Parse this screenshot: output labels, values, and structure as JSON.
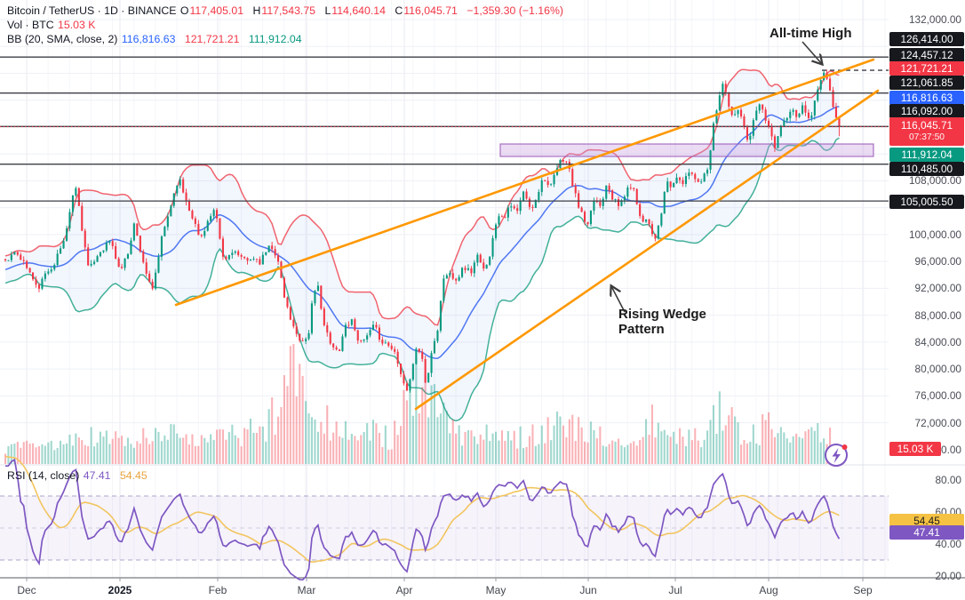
{
  "legend": {
    "symbol_title": "Bitcoin / TetherUS · 1D · BINANCE",
    "ohlc": {
      "o_label": "O",
      "o": "117,405.01",
      "h_label": "H",
      "h": "117,543.75",
      "l_label": "L",
      "l": "114,640.14",
      "c_label": "C",
      "c": "116,045.71",
      "change": "−1,359.30 (−1.16%)"
    },
    "volume": {
      "label": "Vol · BTC",
      "value": "15.03 K"
    },
    "bb": {
      "label": "BB (20, SMA, close, 2)",
      "basis": "116,816.63",
      "upper": "121,721.21",
      "lower": "111,912.04"
    },
    "rsi": {
      "label": "RSI (14, close)",
      "value": "47.41",
      "ma": "54.45"
    }
  },
  "annotations": {
    "ath": "All-time High",
    "wedge": "Rising Wedge Pattern"
  },
  "price_axis": {
    "gridline_labels": [
      {
        "text": "132,000.00",
        "price": 132000
      },
      {
        "text": "108,000.00",
        "price": 108000
      },
      {
        "text": "100,000.00",
        "price": 100000
      },
      {
        "text": "96,000.00",
        "price": 96000
      },
      {
        "text": "92,000.00",
        "price": 92000
      },
      {
        "text": "88,000.00",
        "price": 88000
      },
      {
        "text": "84,000.00",
        "price": 84000
      },
      {
        "text": "80,000.00",
        "price": 80000
      },
      {
        "text": "76,000.00",
        "price": 76000
      },
      {
        "text": "72,000.00",
        "price": 72000
      },
      {
        "text": "68,000.00",
        "price": 68000
      }
    ],
    "badges": [
      {
        "text": "126,414.00",
        "style": "black"
      },
      {
        "text": "124,457.12",
        "style": "black"
      },
      {
        "text": "121,721.21",
        "style": "red"
      },
      {
        "text": "121,061.85",
        "style": "black"
      },
      {
        "text": "116,816.63",
        "style": "blue"
      },
      {
        "text": "116,092.00",
        "style": "black"
      },
      {
        "text": "116,045.71",
        "style": "red",
        "countdown": "07:37:50"
      },
      {
        "text": "111,912.04",
        "style": "teal"
      },
      {
        "text": "110,485.00",
        "style": "black"
      },
      {
        "text": "105,005.50",
        "style": "black"
      }
    ],
    "volume_badge": "15.03 K"
  },
  "rsi_axis": {
    "gridline_labels": [
      {
        "text": "80.00",
        "v": 80
      },
      {
        "text": "60.00",
        "v": 60
      },
      {
        "text": "40.00",
        "v": 40
      },
      {
        "text": "20.00",
        "v": 20
      }
    ],
    "badges": [
      {
        "text": "54.45",
        "style": "yellow",
        "v": 54.45
      },
      {
        "text": "47.41",
        "style": "violet",
        "v": 47.41
      }
    ]
  },
  "time_axis": {
    "labels": [
      {
        "text": "Dec",
        "x": 30
      },
      {
        "text": "2025",
        "x": 135,
        "bold": true
      },
      {
        "text": "Feb",
        "x": 245
      },
      {
        "text": "Mar",
        "x": 345
      },
      {
        "text": "Apr",
        "x": 455
      },
      {
        "text": "May",
        "x": 558
      },
      {
        "text": "Jun",
        "x": 662
      },
      {
        "text": "Jul",
        "x": 760
      },
      {
        "text": "Aug",
        "x": 865
      },
      {
        "text": "Sep",
        "x": 971
      }
    ]
  },
  "chart_data": {
    "type": "candlestick",
    "symbol": "Bitcoin / TetherUS",
    "interval": "1D",
    "exchange": "BINANCE",
    "last_candle": {
      "open": 117405.01,
      "high": 117543.75,
      "low": 114640.14,
      "close": 116045.71,
      "change": -1359.3,
      "change_pct": -1.16
    },
    "all_time_high": 124457.12,
    "current_price": 116045.71,
    "volume_last": "15.03 K",
    "indicators": {
      "bollinger": {
        "settings": "20, SMA, close, 2",
        "basis": 116816.63,
        "upper": 121721.21,
        "lower": 111912.04
      },
      "rsi": {
        "settings": "14, close",
        "value": 47.41,
        "ma": 54.45,
        "levels": [
          70,
          50,
          30
        ]
      }
    },
    "horizontal_levels": [
      126414.0,
      121061.85,
      116092.0,
      110485.0,
      105005.5
    ],
    "supply_zone": {
      "price_top": 113480,
      "price_bottom": 111630
    },
    "trendlines": [
      {
        "name": "wedge-upper",
        "from_price": 96800,
        "to_price": 126900
      },
      {
        "name": "wedge-lower",
        "from_price": 76300,
        "to_price": 121300
      }
    ],
    "y_range": [
      66000,
      133500
    ],
    "x_range_months": [
      "Dec 2024",
      "Sep 2025"
    ],
    "price_path_anchors_k": [
      [
        6,
        96.4
      ],
      [
        20,
        97.2
      ],
      [
        32,
        94.8
      ],
      [
        42,
        91.8
      ],
      [
        52,
        94.2
      ],
      [
        62,
        96.0
      ],
      [
        72,
        99.2
      ],
      [
        85,
        107.6
      ],
      [
        92,
        101.2
      ],
      [
        100,
        94.6
      ],
      [
        112,
        97.4
      ],
      [
        124,
        99.2
      ],
      [
        135,
        94.6
      ],
      [
        143,
        96.8
      ],
      [
        151,
        101.6
      ],
      [
        160,
        96.6
      ],
      [
        171,
        91.2
      ],
      [
        182,
        99.4
      ],
      [
        193,
        104.8
      ],
      [
        201,
        108.6
      ],
      [
        209,
        105.2
      ],
      [
        217,
        102.6
      ],
      [
        225,
        99.2
      ],
      [
        233,
        101.8
      ],
      [
        242,
        103.6
      ],
      [
        252,
        95.8
      ],
      [
        262,
        97.8
      ],
      [
        272,
        96.2
      ],
      [
        282,
        96.6
      ],
      [
        292,
        95.6
      ],
      [
        302,
        98.2
      ],
      [
        312,
        97.0
      ],
      [
        320,
        90.6
      ],
      [
        330,
        86.2
      ],
      [
        340,
        84.0
      ],
      [
        347,
        85.0
      ],
      [
        352,
        90.6
      ],
      [
        358,
        92.2
      ],
      [
        365,
        86.4
      ],
      [
        373,
        83.2
      ],
      [
        381,
        82.6
      ],
      [
        389,
        86.6
      ],
      [
        397,
        87.2
      ],
      [
        405,
        83.6
      ],
      [
        413,
        84.8
      ],
      [
        421,
        86.4
      ],
      [
        429,
        84.2
      ],
      [
        437,
        83.6
      ],
      [
        445,
        82.4
      ],
      [
        452,
        79.2
      ],
      [
        457,
        76.6
      ],
      [
        463,
        79.2
      ],
      [
        469,
        83.6
      ],
      [
        475,
        81.6
      ],
      [
        480,
        76.8
      ],
      [
        486,
        83.0
      ],
      [
        492,
        85.4
      ],
      [
        499,
        93.6
      ],
      [
        507,
        94.2
      ],
      [
        514,
        93.4
      ],
      [
        522,
        95.2
      ],
      [
        530,
        94.4
      ],
      [
        537,
        96.8
      ],
      [
        544,
        94.6
      ],
      [
        552,
        97.4
      ],
      [
        560,
        103.2
      ],
      [
        567,
        102.6
      ],
      [
        574,
        104.2
      ],
      [
        582,
        103.4
      ],
      [
        590,
        106.6
      ],
      [
        597,
        103.4
      ],
      [
        604,
        105.8
      ],
      [
        612,
        108.8
      ],
      [
        619,
        106.6
      ],
      [
        626,
        109.6
      ],
      [
        633,
        111.4
      ],
      [
        639,
        110.6
      ],
      [
        646,
        106.4
      ],
      [
        653,
        103.6
      ],
      [
        661,
        100.9
      ],
      [
        669,
        105.4
      ],
      [
        676,
        104.2
      ],
      [
        683,
        108.0
      ],
      [
        689,
        105.6
      ],
      [
        696,
        104.2
      ],
      [
        703,
        105.9
      ],
      [
        711,
        107.6
      ],
      [
        717,
        104.6
      ],
      [
        723,
        101.9
      ],
      [
        729,
        102.6
      ],
      [
        736,
        99.2
      ],
      [
        743,
        101.8
      ],
      [
        749,
        107.6
      ],
      [
        756,
        107.1
      ],
      [
        763,
        108.8
      ],
      [
        769,
        107.4
      ],
      [
        776,
        109.6
      ],
      [
        783,
        108.2
      ],
      [
        790,
        108.1
      ],
      [
        797,
        110.4
      ],
      [
        803,
        116.4
      ],
      [
        809,
        120.6
      ],
      [
        814,
        122.8
      ],
      [
        819,
        119.4
      ],
      [
        825,
        117.2
      ],
      [
        831,
        118.8
      ],
      [
        837,
        115.9
      ],
      [
        843,
        113.4
      ],
      [
        849,
        118.4
      ],
      [
        855,
        119.4
      ],
      [
        861,
        117.6
      ],
      [
        867,
        114.7
      ],
      [
        873,
        112.9
      ],
      [
        879,
        116.4
      ],
      [
        885,
        117.1
      ],
      [
        891,
        118.4
      ],
      [
        897,
        117.4
      ],
      [
        903,
        119.4
      ],
      [
        909,
        116.9
      ],
      [
        915,
        118.6
      ],
      [
        921,
        122.4
      ],
      [
        927,
        123.9
      ],
      [
        931,
        123.2
      ],
      [
        935,
        120.4
      ],
      [
        939,
        117.8
      ],
      [
        944,
        116.0
      ]
    ],
    "volume_anchors_k": [
      [
        6,
        16
      ],
      [
        60,
        20
      ],
      [
        100,
        28
      ],
      [
        150,
        24
      ],
      [
        200,
        33
      ],
      [
        250,
        26
      ],
      [
        300,
        42
      ],
      [
        318,
        66
      ],
      [
        332,
        118
      ],
      [
        345,
        88
      ],
      [
        360,
        50
      ],
      [
        380,
        38
      ],
      [
        400,
        28
      ],
      [
        420,
        33
      ],
      [
        440,
        26
      ],
      [
        455,
        56
      ],
      [
        470,
        80
      ],
      [
        481,
        66
      ],
      [
        498,
        52
      ],
      [
        520,
        28
      ],
      [
        540,
        24
      ],
      [
        560,
        38
      ],
      [
        580,
        28
      ],
      [
        600,
        33
      ],
      [
        625,
        42
      ],
      [
        640,
        38
      ],
      [
        660,
        33
      ],
      [
        680,
        26
      ],
      [
        700,
        23
      ],
      [
        722,
        28
      ],
      [
        736,
        46
      ],
      [
        750,
        28
      ],
      [
        770,
        26
      ],
      [
        790,
        28
      ],
      [
        803,
        52
      ],
      [
        814,
        56
      ],
      [
        830,
        38
      ],
      [
        845,
        33
      ],
      [
        865,
        38
      ],
      [
        880,
        28
      ],
      [
        900,
        23
      ],
      [
        915,
        28
      ],
      [
        927,
        38
      ],
      [
        938,
        24
      ],
      [
        944,
        15
      ]
    ],
    "colors": {
      "up": "#089981",
      "down": "#f23645",
      "bb_upper": "#ef4956",
      "bb_basis": "#3d6af2",
      "bb_lower": "#2fa88f",
      "trendline": "#ff9800",
      "zone_fill": "#c79ae0",
      "rsi": "#7e57c2",
      "rsi_ma": "#f2c55f"
    }
  }
}
